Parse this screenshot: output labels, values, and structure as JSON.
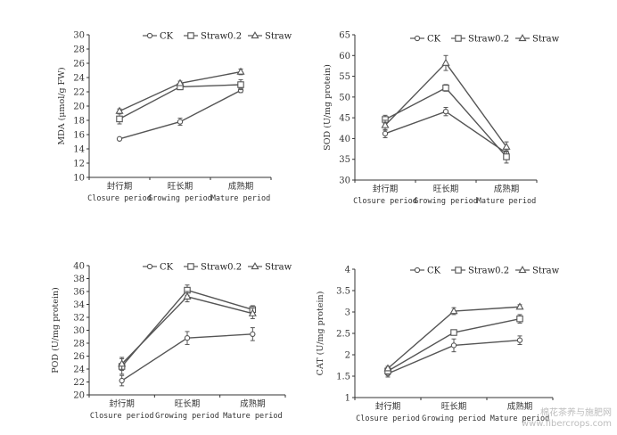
{
  "legend_labels": [
    "CK",
    "Straw0.2",
    "Straw"
  ],
  "watermark": {
    "cn": "棉花茶养与施肥网",
    "url": "www.fibercrops.com"
  },
  "colors": {
    "line": "#555555",
    "axis": "#333333"
  },
  "chart_data": [
    {
      "type": "line",
      "ylabel": "MDA (μmol/g FW)",
      "ylim": [
        10,
        30
      ],
      "yticks": [
        10,
        12,
        14,
        16,
        18,
        20,
        22,
        24,
        26,
        28,
        30
      ],
      "categories": [
        {
          "cn": "封行期",
          "en": "Closure period"
        },
        {
          "cn": "旺长期",
          "en": "Growing period"
        },
        {
          "cn": "成熟期",
          "en": "Mature period"
        }
      ],
      "series": [
        {
          "name": "CK",
          "marker": "circle",
          "values": [
            15.4,
            17.8,
            22.2
          ],
          "errors": [
            0.2,
            0.5,
            0.3
          ]
        },
        {
          "name": "Straw0.2",
          "marker": "square",
          "values": [
            18.2,
            22.7,
            23.0
          ],
          "errors": [
            0.7,
            0.4,
            0.7
          ]
        },
        {
          "name": "Straw",
          "marker": "triangle",
          "values": [
            19.3,
            23.2,
            24.8
          ],
          "errors": [
            0.3,
            0.3,
            0.4
          ]
        }
      ]
    },
    {
      "type": "line",
      "ylabel": "SOD (U/mg protein)",
      "ylim": [
        30,
        65
      ],
      "yticks": [
        30,
        35,
        40,
        45,
        50,
        55,
        60,
        65
      ],
      "categories": [
        {
          "cn": "封行期",
          "en": "Closure period"
        },
        {
          "cn": "旺长期",
          "en": "Growing period"
        },
        {
          "cn": "成熟期",
          "en": "Mature period"
        }
      ],
      "series": [
        {
          "name": "CK",
          "marker": "circle",
          "values": [
            41.2,
            46.5,
            36.5
          ],
          "errors": [
            1.0,
            1.0,
            1.5
          ]
        },
        {
          "name": "Straw0.2",
          "marker": "square",
          "values": [
            44.6,
            52.2,
            35.6
          ],
          "errors": [
            1.0,
            0.8,
            1.5
          ]
        },
        {
          "name": "Straw",
          "marker": "triangle",
          "values": [
            43.2,
            58.2,
            38.0
          ],
          "errors": [
            1.2,
            1.8,
            1.2
          ]
        }
      ]
    },
    {
      "type": "line",
      "ylabel": "POD (U/mg protein)",
      "ylim": [
        20,
        40
      ],
      "yticks": [
        20,
        22,
        24,
        26,
        28,
        30,
        32,
        34,
        36,
        38,
        40
      ],
      "categories": [
        {
          "cn": "封行期",
          "en": "Closure period"
        },
        {
          "cn": "旺长期",
          "en": "Growing period"
        },
        {
          "cn": "成熟期",
          "en": "Mature period"
        }
      ],
      "series": [
        {
          "name": "CK",
          "marker": "circle",
          "values": [
            22.2,
            28.8,
            29.4
          ],
          "errors": [
            0.8,
            1.0,
            1.0
          ]
        },
        {
          "name": "Straw0.2",
          "marker": "square",
          "values": [
            24.4,
            36.2,
            33.2
          ],
          "errors": [
            1.2,
            0.8,
            0.6
          ]
        },
        {
          "name": "Straw",
          "marker": "triangle",
          "values": [
            24.8,
            35.2,
            32.6
          ],
          "errors": [
            1.0,
            0.8,
            0.8
          ]
        }
      ]
    },
    {
      "type": "line",
      "ylabel": "CAT (U/mg protein)",
      "ylim": [
        1,
        4
      ],
      "yticks": [
        1,
        1.5,
        2,
        2.5,
        3,
        3.5,
        4
      ],
      "categories": [
        {
          "cn": "封行期",
          "en": "Closure period"
        },
        {
          "cn": "旺长期",
          "en": "Growing period"
        },
        {
          "cn": "成熟期",
          "en": "Mature period"
        }
      ],
      "series": [
        {
          "name": "CK",
          "marker": "circle",
          "values": [
            1.56,
            2.22,
            2.34
          ],
          "errors": [
            0.08,
            0.15,
            0.1
          ]
        },
        {
          "name": "Straw0.2",
          "marker": "square",
          "values": [
            1.62,
            2.52,
            2.84
          ],
          "errors": [
            0.08,
            0.06,
            0.1
          ]
        },
        {
          "name": "Straw",
          "marker": "triangle",
          "values": [
            1.68,
            3.02,
            3.12
          ],
          "errors": [
            0.05,
            0.08,
            0.05
          ]
        }
      ]
    }
  ]
}
